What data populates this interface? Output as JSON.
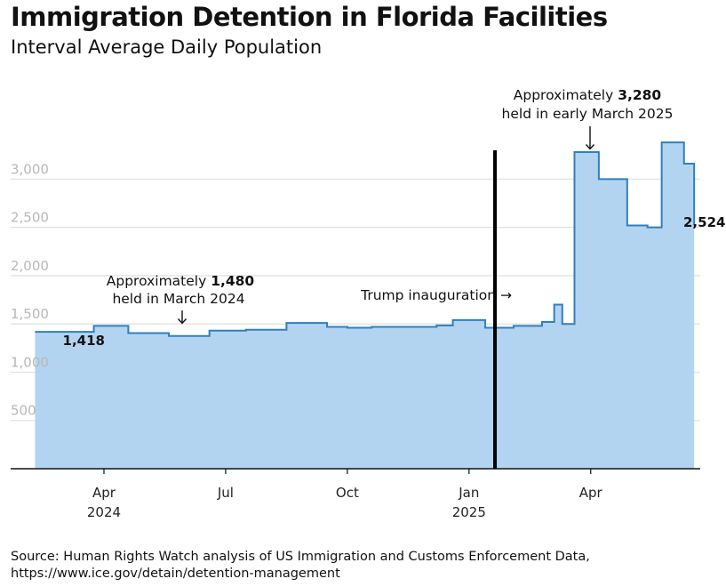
{
  "header": {
    "title": "Immigration Detention in Florida Facilities",
    "subtitle": "Interval Average Daily Population"
  },
  "source": {
    "line1": "Source: Human Rights Watch analysis of US Immigration and Customs Enforcement Data,",
    "line2": "https://www.ice.gov/detain/detention-management"
  },
  "annotations": {
    "march_2024": {
      "line1_prefix": "Approximately ",
      "value": "1,480",
      "line2": "held in March 2024"
    },
    "march_2025": {
      "line1_prefix": "Approximately ",
      "value": "3,280",
      "line2": "held in early March 2025"
    },
    "inauguration": {
      "label": "Trump inauguration →"
    },
    "start_label": "1,418",
    "end_label": "2,524"
  },
  "chart_data": {
    "type": "area",
    "title": "Immigration Detention in Florida Facilities",
    "subtitle": "Interval Average Daily Population",
    "xlabel": "",
    "ylabel": "",
    "ylim": [
      0,
      3400
    ],
    "yticks": [
      500,
      1000,
      1500,
      2000,
      2500,
      3000
    ],
    "ytick_labels": [
      "500",
      "1,000",
      "1,500",
      "2,000",
      "2,500",
      "3,000"
    ],
    "xticks": [
      {
        "label": "Apr",
        "year": "2024",
        "month_index": 3
      },
      {
        "label": "Jul",
        "year": "",
        "month_index": 6
      },
      {
        "label": "Oct",
        "year": "",
        "month_index": 9
      },
      {
        "label": "Jan",
        "year": "2025",
        "month_index": 12
      },
      {
        "label": "Apr",
        "year": "",
        "month_index": 15
      }
    ],
    "x_domain_months": [
      0.7,
      17.7
    ],
    "step_series": {
      "name": "Interval Average Daily Population",
      "x_month_index": [
        1.3,
        2.75,
        3.6,
        4.6,
        5.6,
        6.5,
        7.5,
        8.5,
        9.0,
        9.6,
        11.2,
        11.6,
        12.4,
        13.1,
        13.8,
        14.1,
        14.3,
        14.6,
        15.2,
        15.9,
        16.4,
        16.75,
        17.3
      ],
      "values": [
        1418,
        1480,
        1405,
        1375,
        1430,
        1440,
        1510,
        1470,
        1460,
        1470,
        1485,
        1540,
        1460,
        1480,
        1520,
        1700,
        1500,
        3280,
        3000,
        2520,
        2500,
        3380,
        3160,
        2524
      ],
      "end_month_index": 17.55
    },
    "inauguration_month_index": 12.64
  }
}
